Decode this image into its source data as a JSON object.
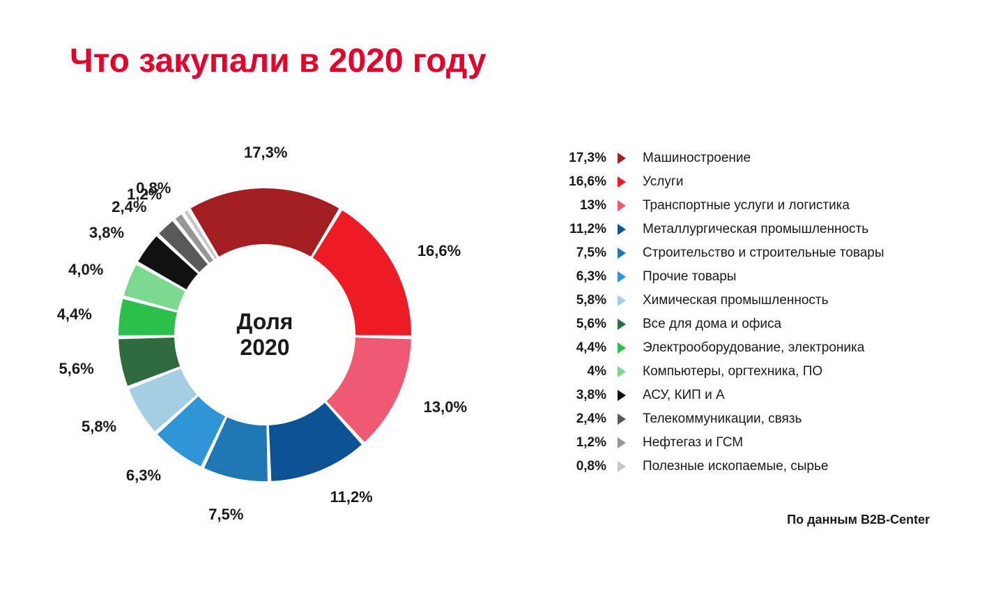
{
  "title": "Что закупали в 2020 году",
  "center_line1": "Доля",
  "center_line2": "2020",
  "source": "По данным B2B-Center",
  "chart": {
    "type": "donut",
    "background_color": "#ffffff",
    "outer_radius": 210,
    "inner_radius": 130,
    "gap_deg": 1.5,
    "start_angle_deg": -90,
    "label_fontsize": 22,
    "title_fontsize": 48,
    "title_color": "#e4002b",
    "text_color": "#1a1a1a",
    "slices": [
      {
        "value": 17.3,
        "pct_str": "17,3%",
        "color": "#a31e22",
        "label": "Машиностроение"
      },
      {
        "value": 16.6,
        "pct_str": "16,6%",
        "color": "#ed1b24",
        "label": "Услуги"
      },
      {
        "value": 13.0,
        "pct_str": "13,0%",
        "pct_legend": "13%",
        "color": "#ef5a72",
        "label": "Транспортные услуги и логистика"
      },
      {
        "value": 11.2,
        "pct_str": "11,2%",
        "color": "#0b5394",
        "label": "Металлургическая промышленность"
      },
      {
        "value": 7.5,
        "pct_str": "7,5%",
        "color": "#1f77b4",
        "label": "Строительство и строительные товары"
      },
      {
        "value": 6.3,
        "pct_str": "6,3%",
        "color": "#2f95d6",
        "label": "Прочие товары"
      },
      {
        "value": 5.8,
        "pct_str": "5,8%",
        "color": "#a6cee3",
        "label": "Химическая промышленность"
      },
      {
        "value": 5.6,
        "pct_str": "5,6%",
        "color": "#2f6b3d",
        "label": "Все для дома и офиса"
      },
      {
        "value": 4.4,
        "pct_str": "4,4%",
        "color": "#2dbf4b",
        "label": "Электрооборудование, электроника"
      },
      {
        "value": 4.0,
        "pct_str": "4,0%",
        "pct_legend": "4%",
        "color": "#7bd88f",
        "label": "Компьютеры, оргтехника, ПО"
      },
      {
        "value": 3.8,
        "pct_str": "3,8%",
        "color": "#111111",
        "label": "АСУ, КИП и А"
      },
      {
        "value": 2.4,
        "pct_str": "2,4%",
        "color": "#595959",
        "label": "Телекоммуникации, связь"
      },
      {
        "value": 1.2,
        "pct_str": "1,2%",
        "color": "#969696",
        "label": "Нефтегаз и ГСМ"
      },
      {
        "value": 0.8,
        "pct_str": "0,8%",
        "color": "#c7c7c7",
        "label": "Полезные ископаемые, сырье"
      }
    ]
  }
}
